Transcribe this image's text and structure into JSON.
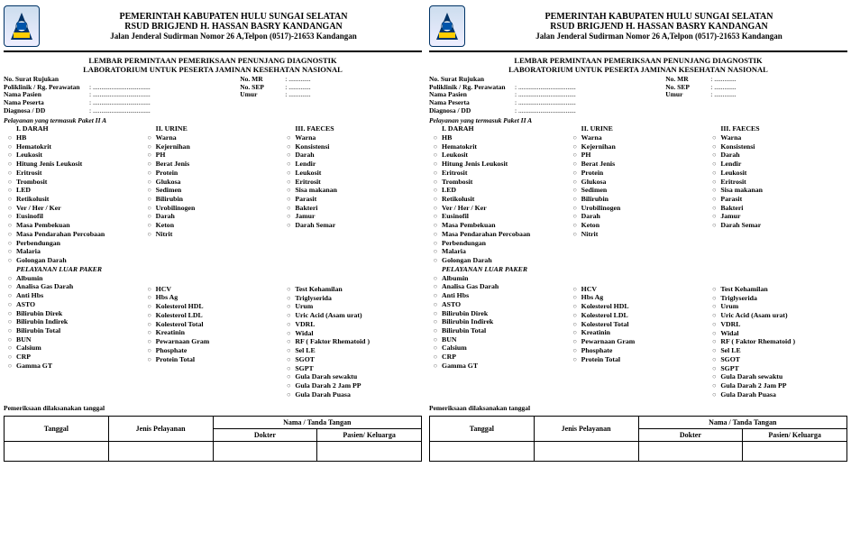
{
  "header": {
    "line1": "PEMERINTAH KABUPATEN HULU SUNGAI SELATAN",
    "line2": "RSUD BRIGJEND H. HASSAN BASRY KANDANGAN",
    "line3": "Jalan Jenderal Sudirman Nomor 26 A,Telpon (0517)-21653 Kandangan"
  },
  "title": {
    "t1": "LEMBAR PERMINTAAN PEMERIKSAAN PENUNJANG DIAGNOSTIK",
    "t2": "LABORATORIUM UNTUK PESERTA JAMINAN KESEHATAN NASIONAL"
  },
  "meta_left_labels": {
    "m1": "No. Surat Rujukan",
    "m2": "Poliklinik / Rg. Perawatan",
    "m3": "Nama Pasien",
    "m4": "Nama Peserta",
    "m5": "Diagnosa / DD"
  },
  "meta_right_labels": {
    "r1": "No. MR",
    "r2": "No. SEP",
    "r3": "Umur"
  },
  "dots": ": ..................................",
  "dots_short": ": .............",
  "section_sub": "Pelayanan yang termasuk Paket II A",
  "col_headers": {
    "c1": "I. DARAH",
    "c2": "II. URINE",
    "c3": "III. FAECES"
  },
  "col1_a": [
    "HB",
    "Hematokrit",
    "Leukosit",
    "Hitung Jenis Leukosit",
    "Eritrosit",
    "Trombosit",
    "LED",
    "Retikolusit",
    "Ver / Her / Ker",
    "Eusinofil",
    "Masa Pembekuan",
    "Masa Pendarahan Percobaan",
    "Perbendungan",
    "Malaria",
    "Golongan Darah"
  ],
  "col2_a": [
    "Warna",
    "Kejernihan",
    "PH",
    "Berat Jenis",
    "Protein",
    "Glukosa",
    "Sedimen",
    "Bilirubin",
    "Urobilinogen",
    "Darah",
    "Keton",
    "Nitrit"
  ],
  "col3_a": [
    "Warna",
    "Konsistensi",
    "Darah",
    "Lendir",
    "Leukosit",
    "Eritrosit",
    "Sisa makanan",
    "Parasit",
    "Bakteri",
    "Jamur",
    "Darah Semar"
  ],
  "paker_title": "PELAYANAN LUAR PAKER",
  "col1_b": [
    "Albumin",
    "Analisa Gas Darah",
    "Anti Hbs",
    "ASTO",
    "Bilirubin Direk",
    "Bilirubin Indirek",
    "Bilirubin Total",
    "BUN",
    "Calsium",
    "CRP",
    "Gamma GT"
  ],
  "col2_b": [
    "HCV",
    "Hbs Ag",
    "Kolesterol HDL",
    "Kolesterol LDL",
    "Kolesterol Total",
    "Kreatinin",
    "Pewarnaan Gram",
    "Phosphate",
    "Protein Total"
  ],
  "col3_b": [
    "Test Kehamilan",
    "Triglyserida",
    "Urum",
    "Uric Acid (Asam urat)",
    "VDRL",
    "Widal",
    "RF ( Faktor Rhematoid )",
    "Sel LE",
    "SGOT",
    "SGPT",
    "Gula Darah sewaktu",
    "Gula Darah 2 Jam PP",
    "Gula Darah Puasa"
  ],
  "exam_note": "Pemeriksaan dilaksanakan tanggal",
  "sign": {
    "h1": "Tanggal",
    "h2": "Jenis Pelayanan",
    "h3": "Nama / Tanda Tangan",
    "h3a": "Dokter",
    "h3b": "Pasien/ Keluarga"
  },
  "colors": {
    "text": "#000000",
    "rule": "#000000",
    "crest_bg": "#cde"
  }
}
